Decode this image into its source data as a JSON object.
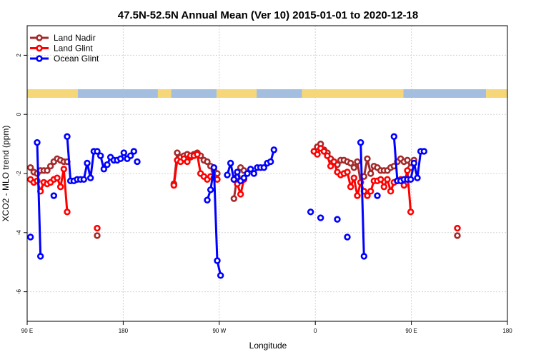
{
  "chart_data": {
    "type": "line",
    "title": "47.5N-52.5N Annual Mean (Ver 10)   2015-01-01 to 2020-12-18",
    "xlabel": "Longitude",
    "ylabel": "XCO2 - MLO trend (ppm)",
    "xlim": [
      90,
      450
    ],
    "ylim": [
      -7,
      3
    ],
    "x_ticks": [
      {
        "value": 90,
        "label": "90 E"
      },
      {
        "value": 162,
        "label": "180"
      },
      {
        "value": 234,
        "label": "90 W"
      },
      {
        "value": 306,
        "label": "0"
      },
      {
        "value": 378,
        "label": "90 E"
      },
      {
        "value": 450,
        "label": "180"
      }
    ],
    "y_ticks": [
      {
        "value": 2,
        "label": "2"
      },
      {
        "value": 0,
        "label": "0"
      },
      {
        "value": -2,
        "label": "-2"
      },
      {
        "value": -4,
        "label": "-4"
      },
      {
        "value": -6,
        "label": "-6"
      }
    ],
    "grid": true,
    "legend_position": "top-left",
    "colors": {
      "land_nadir": "#a52a2a",
      "land_glint": "#ff0000",
      "ocean_glint": "#0000ff",
      "land_mask": "#f5d77a",
      "ocean_mask": "#a3bedf",
      "grid": "#d3d3d3"
    },
    "series": [
      {
        "name": "Land Nadir",
        "color_key": "land_nadir",
        "segments": [
          [
            [
              92.5,
              -1.8
            ],
            [
              95,
              -1.95
            ],
            [
              97.5,
              -2.0
            ],
            [
              100,
              -1.9
            ],
            [
              102.5,
              -1.9
            ],
            [
              105,
              -1.9
            ],
            [
              107.5,
              -1.75
            ],
            [
              110,
              -1.6
            ],
            [
              112.5,
              -1.5
            ],
            [
              115,
              -1.55
            ],
            [
              117.5,
              -1.6
            ],
            [
              120,
              -1.6
            ]
          ],
          [
            [
              142.5,
              -4.1
            ]
          ],
          [
            [
              200,
              -2.35
            ],
            [
              202.5,
              -1.3
            ],
            [
              205,
              -1.45
            ],
            [
              207.5,
              -1.4
            ],
            [
              210,
              -1.35
            ],
            [
              212.5,
              -1.45
            ],
            [
              215,
              -1.35
            ],
            [
              217.5,
              -1.3
            ],
            [
              220,
              -1.4
            ],
            [
              222.5,
              -1.55
            ],
            [
              225,
              -1.6
            ],
            [
              227.5,
              -1.75
            ],
            [
              230,
              -1.9
            ],
            [
              232.5,
              -2.0
            ]
          ],
          [
            [
              245,
              -2.85
            ],
            [
              247.5,
              -2.1
            ],
            [
              250,
              -1.8
            ],
            [
              252.5,
              -1.9
            ]
          ],
          [
            [
              305,
              -1.25
            ],
            [
              307.5,
              -1.1
            ],
            [
              310,
              -1.0
            ],
            [
              312.5,
              -1.2
            ],
            [
              315,
              -1.3
            ],
            [
              317.5,
              -1.5
            ],
            [
              320,
              -1.6
            ],
            [
              322.5,
              -1.7
            ],
            [
              325,
              -1.55
            ],
            [
              327.5,
              -1.55
            ],
            [
              330,
              -1.6
            ],
            [
              332.5,
              -1.65
            ],
            [
              335,
              -1.8
            ],
            [
              337.5,
              -1.6
            ],
            [
              340,
              -2.3
            ],
            [
              342.5,
              -2.1
            ],
            [
              345,
              -1.5
            ],
            [
              347.5,
              -2.0
            ],
            [
              350,
              -1.75
            ],
            [
              352.5,
              -1.8
            ],
            [
              355,
              -1.9
            ],
            [
              357.5,
              -1.9
            ],
            [
              360,
              -1.9
            ],
            [
              362.5,
              -1.8
            ],
            [
              365,
              -1.75
            ],
            [
              367.5,
              -1.6
            ],
            [
              370,
              -1.5
            ],
            [
              372.5,
              -1.6
            ],
            [
              375,
              -1.55
            ],
            [
              377.5,
              -1.8
            ],
            [
              380,
              -1.55
            ]
          ],
          [
            [
              412.5,
              -4.1
            ]
          ]
        ]
      },
      {
        "name": "Land Glint",
        "color_key": "land_glint",
        "segments": [
          [
            [
              92.5,
              -2.2
            ],
            [
              95,
              -2.3
            ],
            [
              97.5,
              -2.25
            ],
            [
              100,
              -2.6
            ],
            [
              102.5,
              -2.3
            ],
            [
              105,
              -2.35
            ],
            [
              107.5,
              -2.3
            ],
            [
              110,
              -2.2
            ],
            [
              112.5,
              -2.15
            ],
            [
              115,
              -2.45
            ],
            [
              117.5,
              -1.85
            ],
            [
              120,
              -3.3
            ]
          ],
          [
            [
              142.5,
              -3.85
            ]
          ],
          [
            [
              200,
              -2.4
            ],
            [
              202.5,
              -1.55
            ],
            [
              205,
              -1.6
            ],
            [
              207.5,
              -1.5
            ],
            [
              210,
              -1.6
            ],
            [
              212.5,
              -1.4
            ],
            [
              215,
              -1.4
            ],
            [
              217.5,
              -1.35
            ],
            [
              220,
              -2.0
            ],
            [
              222.5,
              -2.1
            ],
            [
              225,
              -2.2
            ],
            [
              227.5,
              -2.1
            ],
            [
              230,
              -2.15
            ],
            [
              232.5,
              -2.2
            ]
          ],
          [
            [
              245,
              -2.2
            ],
            [
              247.5,
              -2.35
            ],
            [
              250,
              -2.7
            ],
            [
              252.5,
              -2.2
            ]
          ],
          [
            [
              305,
              -1.25
            ],
            [
              307.5,
              -1.35
            ],
            [
              310,
              -1.15
            ],
            [
              312.5,
              -1.25
            ],
            [
              315,
              -1.4
            ],
            [
              317.5,
              -1.75
            ],
            [
              320,
              -1.6
            ],
            [
              322.5,
              -1.95
            ],
            [
              325,
              -2.05
            ],
            [
              327.5,
              -2.0
            ],
            [
              330,
              -1.95
            ],
            [
              332.5,
              -2.45
            ],
            [
              335,
              -2.15
            ],
            [
              337.5,
              -2.75
            ],
            [
              340,
              -2.3
            ],
            [
              342.5,
              -2.6
            ],
            [
              345,
              -2.75
            ],
            [
              347.5,
              -2.6
            ],
            [
              350,
              -2.25
            ],
            [
              352.5,
              -2.25
            ],
            [
              355,
              -2.2
            ],
            [
              357.5,
              -2.45
            ],
            [
              360,
              -2.2
            ],
            [
              362.5,
              -2.6
            ],
            [
              365,
              -2.3
            ],
            [
              367.5,
              -2.25
            ],
            [
              370,
              -2.2
            ],
            [
              372.5,
              -2.4
            ],
            [
              375,
              -1.9
            ],
            [
              377.5,
              -3.3
            ]
          ],
          [
            [
              412.5,
              -3.85
            ]
          ]
        ]
      },
      {
        "name": "Ocean Glint",
        "color_key": "ocean_glint",
        "segments": [
          [
            [
              92.5,
              -4.15
            ]
          ],
          [
            [
              97.5,
              -0.95
            ],
            [
              100,
              -4.8
            ]
          ],
          [
            [
              110,
              -2.75
            ]
          ],
          [
            [
              120,
              -0.75
            ],
            [
              122.5,
              -2.25
            ],
            [
              125,
              -2.25
            ],
            [
              127.5,
              -2.2
            ],
            [
              130,
              -2.2
            ],
            [
              132.5,
              -2.2
            ],
            [
              135,
              -1.65
            ],
            [
              137.5,
              -2.15
            ],
            [
              140,
              -1.25
            ],
            [
              142.5,
              -1.25
            ],
            [
              145,
              -1.4
            ],
            [
              147.5,
              -1.85
            ],
            [
              150,
              -1.7
            ],
            [
              152.5,
              -1.45
            ],
            [
              155,
              -1.55
            ],
            [
              157.5,
              -1.55
            ],
            [
              160,
              -1.5
            ],
            [
              162.5,
              -1.3
            ],
            [
              165,
              -1.5
            ],
            [
              167.5,
              -1.4
            ],
            [
              170,
              -1.25
            ]
          ],
          [
            [
              172.5,
              -1.6
            ]
          ],
          [
            [
              225,
              -2.9
            ],
            [
              227.5,
              -2.55
            ],
            [
              230,
              -1.8
            ],
            [
              232.5,
              -4.95
            ],
            [
              235,
              -5.45
            ]
          ],
          [
            [
              240,
              -2.05
            ],
            [
              242.5,
              -1.65
            ],
            [
              245,
              -2.2
            ],
            [
              247.5,
              -1.95
            ],
            [
              250,
              -2.25
            ],
            [
              252.5,
              -2.15
            ],
            [
              255,
              -2.0
            ],
            [
              257.5,
              -1.85
            ],
            [
              260,
              -2.0
            ],
            [
              262.5,
              -1.8
            ],
            [
              265,
              -1.8
            ],
            [
              267.5,
              -1.8
            ],
            [
              270,
              -1.65
            ],
            [
              272.5,
              -1.6
            ],
            [
              275,
              -1.2
            ]
          ],
          [
            [
              302.5,
              -3.3
            ]
          ],
          [
            [
              310,
              -3.5
            ]
          ],
          [
            [
              322.5,
              -3.55
            ]
          ],
          [
            [
              330,
              -4.15
            ]
          ],
          [
            [
              342.5,
              -4.8
            ],
            [
              340,
              -0.95
            ]
          ],
          [
            [
              352.5,
              -2.75
            ]
          ],
          [
            [
              365,
              -0.75
            ],
            [
              367.5,
              -2.25
            ],
            [
              370,
              -2.25
            ],
            [
              372.5,
              -2.2
            ],
            [
              375,
              -2.2
            ],
            [
              377.5,
              -2.2
            ],
            [
              380,
              -1.65
            ],
            [
              382.5,
              -2.15
            ],
            [
              385,
              -1.25
            ],
            [
              387.5,
              -1.25
            ]
          ]
        ]
      }
    ],
    "land_ocean_mask": [
      {
        "from": 90,
        "to": 128,
        "type": "land"
      },
      {
        "from": 128,
        "to": 188,
        "type": "ocean"
      },
      {
        "from": 188,
        "to": 198,
        "type": "land"
      },
      {
        "from": 198,
        "to": 232,
        "type": "ocean"
      },
      {
        "from": 232,
        "to": 262,
        "type": "land"
      },
      {
        "from": 262,
        "to": 296,
        "type": "ocean"
      },
      {
        "from": 296,
        "to": 372,
        "type": "land"
      },
      {
        "from": 372,
        "to": 434,
        "type": "ocean"
      },
      {
        "from": 434,
        "to": 450,
        "type": "land"
      }
    ]
  }
}
